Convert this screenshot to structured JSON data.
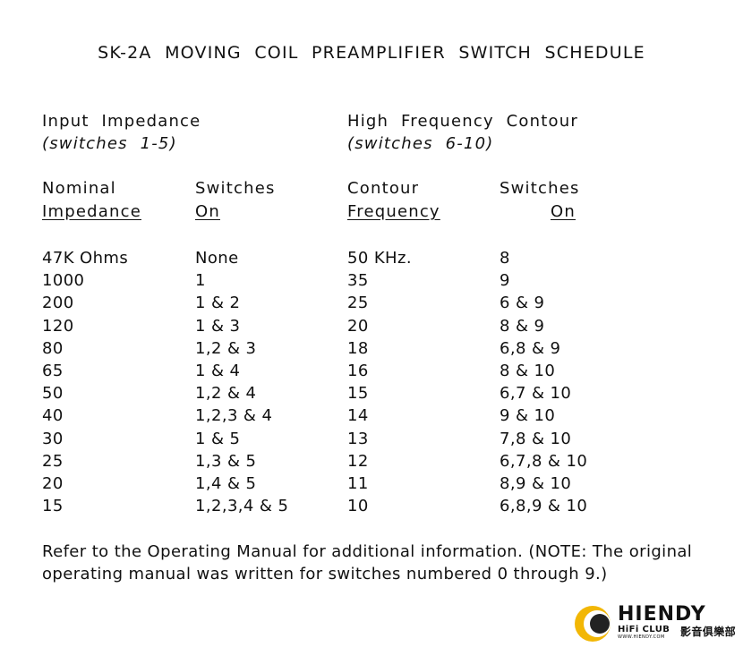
{
  "title": "SK-2A  MOVING  COIL  PREAMPLIFIER  SWITCH  SCHEDULE",
  "sections": [
    {
      "heading": "Input  Impedance",
      "subheading": "(switches  1-5)",
      "column_headers": [
        "Nominal",
        "Switches"
      ],
      "column_subheaders": [
        "Impedance",
        "On"
      ],
      "rows": [
        [
          "47K Ohms",
          "None"
        ],
        [
          "1000",
          "1"
        ],
        [
          "200",
          "1 & 2"
        ],
        [
          "120",
          "1 & 3"
        ],
        [
          "80",
          "1,2 & 3"
        ],
        [
          "65",
          "1 & 4"
        ],
        [
          "50",
          "1,2 & 4"
        ],
        [
          "40",
          "1,2,3 & 4"
        ],
        [
          "30",
          "1 & 5"
        ],
        [
          "25",
          "1,3 & 5"
        ],
        [
          "20",
          "1,4 & 5"
        ],
        [
          "15",
          "1,2,3,4 & 5"
        ]
      ]
    },
    {
      "heading": "High  Frequency  Contour",
      "subheading": "(switches  6-10)",
      "column_headers": [
        "Contour",
        "Switches"
      ],
      "column_subheaders": [
        "Frequency",
        "On"
      ],
      "rows": [
        [
          "50 KHz.",
          "8"
        ],
        [
          "35",
          "9"
        ],
        [
          "25",
          "6 & 9"
        ],
        [
          "20",
          "8 & 9"
        ],
        [
          "18",
          "6,8 & 9"
        ],
        [
          "16",
          "8 & 10"
        ],
        [
          "15",
          "6,7 & 10"
        ],
        [
          "14",
          "9 & 10"
        ],
        [
          "13",
          "7,8 & 10"
        ],
        [
          "12",
          "6,7,8 & 10"
        ],
        [
          "11",
          "8,9 & 10"
        ],
        [
          "10",
          "6,8,9 & 10"
        ]
      ]
    }
  ],
  "note": [
    "Refer to the Operating Manual for additional information. (NOTE: The original",
    "operating manual was written for switches numbered 0 through 9.)"
  ],
  "logo": {
    "brand": "HIENDY",
    "club": "HiFi CLUB",
    "url": "WWW.HIENDY.COM",
    "chinese": "影音俱樂部"
  }
}
